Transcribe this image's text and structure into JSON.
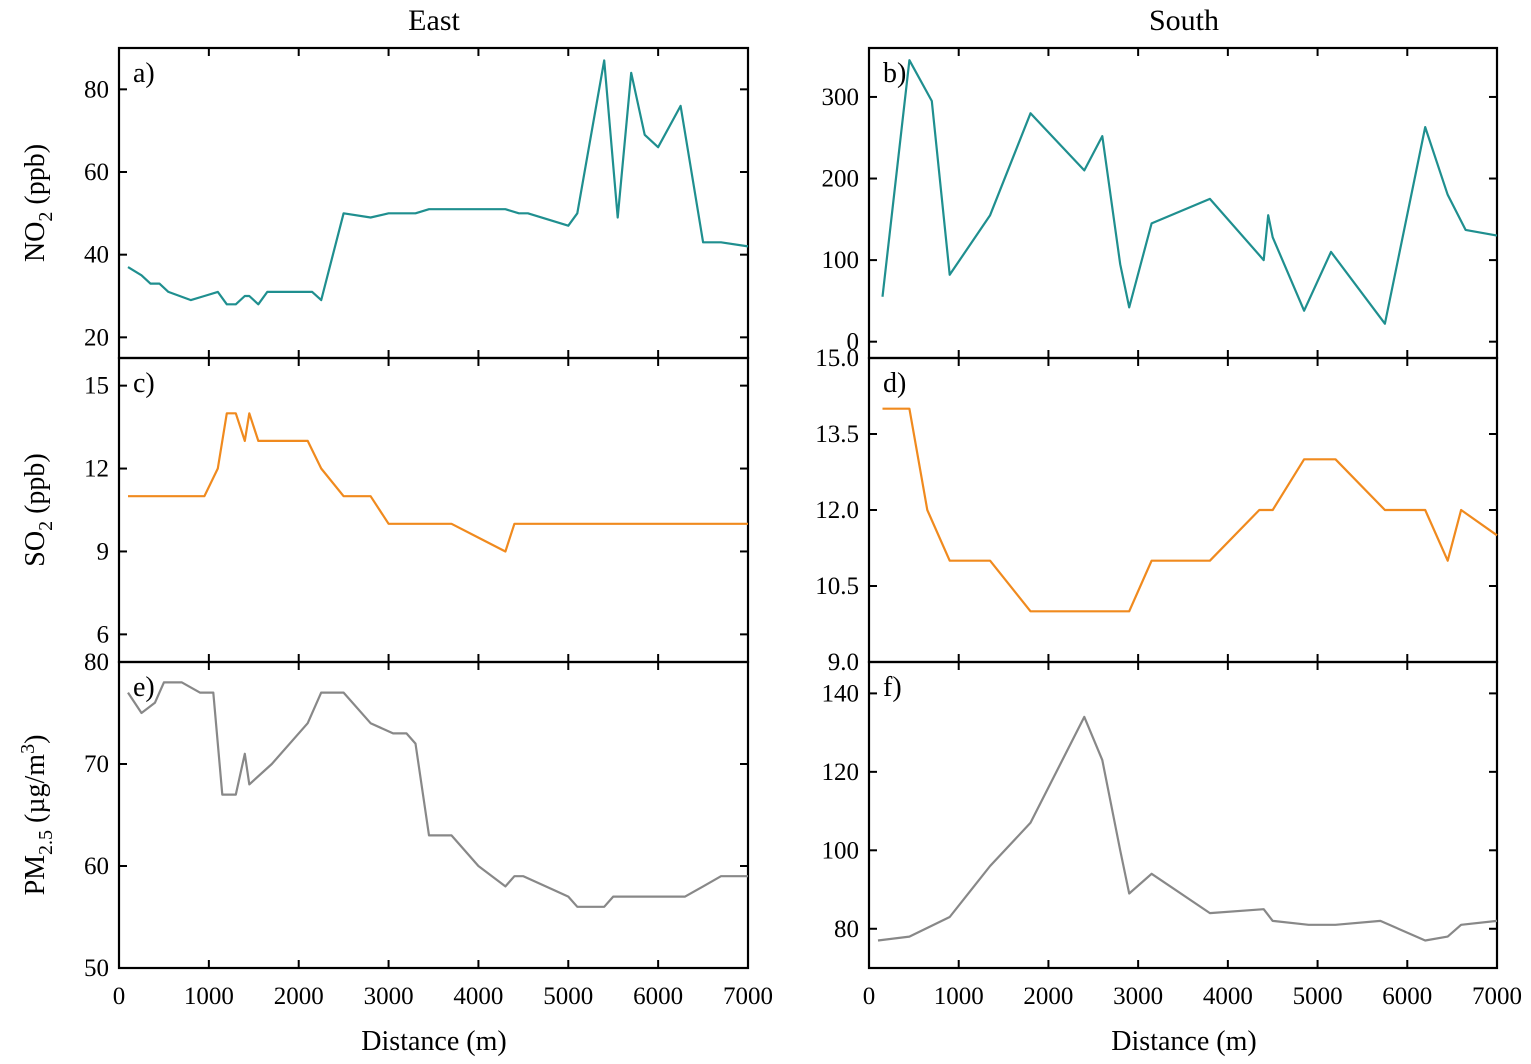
{
  "figure": {
    "col_titles": [
      "East",
      "South"
    ],
    "xlabel": "Distance (m)"
  },
  "chart_data": [
    {
      "type": "line",
      "panel_label": "a)",
      "title": "",
      "xlabel": "",
      "ylabel_parts": {
        "pre": "NO",
        "sub": "2",
        "post": " (ppb)"
      },
      "xlim": [
        0,
        7000
      ],
      "ylim": [
        15,
        90
      ],
      "x_ticks": [
        0,
        1000,
        2000,
        3000,
        4000,
        5000,
        6000,
        7000
      ],
      "y_ticks": [
        20,
        40,
        60,
        80
      ],
      "y_tick_labels": [
        "20",
        "40",
        "60",
        "80"
      ],
      "color": "#1f8f8f",
      "x": [
        100,
        250,
        350,
        450,
        550,
        800,
        950,
        1100,
        1200,
        1300,
        1400,
        1450,
        1550,
        1650,
        1800,
        2000,
        2150,
        2250,
        2500,
        2800,
        3000,
        3300,
        3450,
        3700,
        4000,
        4300,
        4450,
        4550,
        5000,
        5100,
        5400,
        5550,
        5700,
        5850,
        6000,
        6250,
        6500,
        6700,
        7000
      ],
      "y": [
        37,
        35,
        33,
        33,
        31,
        29,
        30,
        31,
        28,
        28,
        30,
        30,
        28,
        31,
        31,
        31,
        31,
        29,
        50,
        49,
        50,
        50,
        51,
        51,
        51,
        51,
        50,
        50,
        47,
        50,
        87,
        49,
        84,
        69,
        66,
        76,
        43,
        43,
        42
      ]
    },
    {
      "type": "line",
      "panel_label": "b)",
      "title": "",
      "xlabel": "",
      "xlim": [
        0,
        7000
      ],
      "ylim": [
        -20,
        360
      ],
      "x_ticks": [
        0,
        1000,
        2000,
        3000,
        4000,
        5000,
        6000,
        7000
      ],
      "y_ticks": [
        0,
        100,
        200,
        300
      ],
      "y_tick_labels": [
        "0",
        "100",
        "200",
        "300"
      ],
      "color": "#1f8f8f",
      "x": [
        150,
        450,
        700,
        900,
        1350,
        1800,
        2400,
        2600,
        2800,
        2900,
        3150,
        3800,
        4400,
        4450,
        4500,
        4850,
        5150,
        5750,
        6200,
        6450,
        6650,
        7000
      ],
      "y": [
        55,
        345,
        295,
        82,
        155,
        280,
        210,
        252,
        95,
        42,
        145,
        175,
        100,
        155,
        128,
        38,
        110,
        22,
        263,
        180,
        137,
        130
      ]
    },
    {
      "type": "line",
      "panel_label": "c)",
      "title": "",
      "xlabel": "",
      "ylabel_parts": {
        "pre": "SO",
        "sub": "2",
        "post": " (ppb)"
      },
      "xlim": [
        0,
        7000
      ],
      "ylim": [
        5,
        16
      ],
      "x_ticks": [
        0,
        1000,
        2000,
        3000,
        4000,
        5000,
        6000,
        7000
      ],
      "y_ticks": [
        6,
        9,
        12,
        15
      ],
      "y_tick_labels": [
        "6",
        "9",
        "12",
        "15"
      ],
      "color": "#f08a1e",
      "x": [
        100,
        300,
        500,
        700,
        950,
        1100,
        1200,
        1300,
        1400,
        1450,
        1550,
        1700,
        2100,
        2250,
        2500,
        2800,
        3000,
        3200,
        3700,
        4000,
        4300,
        4400,
        4500,
        5000,
        7000
      ],
      "y": [
        11,
        11,
        11,
        11,
        11,
        12,
        14,
        14,
        13,
        14,
        13,
        13,
        13,
        12,
        11,
        11,
        10,
        10,
        10,
        9.5,
        9,
        10,
        10,
        10,
        10
      ]
    },
    {
      "type": "line",
      "panel_label": "d)",
      "title": "",
      "xlabel": "",
      "xlim": [
        0,
        7000
      ],
      "ylim": [
        9,
        15
      ],
      "x_ticks": [
        0,
        1000,
        2000,
        3000,
        4000,
        5000,
        6000,
        7000
      ],
      "y_ticks": [
        9,
        10.5,
        12,
        13.5,
        15
      ],
      "y_tick_labels": [
        "9.0",
        "10.5",
        "12.0",
        "13.5",
        "15.0"
      ],
      "color": "#f08a1e",
      "x": [
        150,
        450,
        650,
        900,
        1350,
        1800,
        2400,
        2900,
        3150,
        3800,
        4350,
        4500,
        4850,
        5200,
        5750,
        6200,
        6450,
        6600,
        7000
      ],
      "y": [
        14,
        14,
        12,
        11,
        11,
        10,
        10,
        10,
        11,
        11,
        12,
        12,
        13,
        13,
        12,
        12,
        11,
        12,
        11.5
      ]
    },
    {
      "type": "line",
      "panel_label": "e)",
      "title": "",
      "xlabel": "Distance (m)",
      "ylabel_parts": {
        "pre": "PM",
        "sub": "2.5",
        "post": " (µg/m",
        "sup": "3",
        "post2": ")"
      },
      "xlim": [
        0,
        7000
      ],
      "ylim": [
        50,
        80
      ],
      "x_ticks": [
        0,
        1000,
        2000,
        3000,
        4000,
        5000,
        6000,
        7000
      ],
      "x_tick_labels": [
        "0",
        "1000",
        "2000",
        "3000",
        "4000",
        "5000",
        "6000",
        "7000"
      ],
      "y_ticks": [
        50,
        60,
        70,
        80
      ],
      "y_tick_labels": [
        "50",
        "60",
        "70",
        "80"
      ],
      "color": "#888888",
      "x": [
        100,
        250,
        400,
        500,
        700,
        900,
        1050,
        1150,
        1200,
        1300,
        1400,
        1450,
        1700,
        2100,
        2250,
        2500,
        2800,
        3050,
        3200,
        3300,
        3450,
        3700,
        4000,
        4300,
        4400,
        4500,
        5000,
        5100,
        5400,
        5500,
        6000,
        6300,
        6500,
        6700,
        7000
      ],
      "y": [
        77,
        75,
        76,
        78,
        78,
        77,
        77,
        67,
        67,
        67,
        71,
        68,
        70,
        74,
        77,
        77,
        74,
        73,
        73,
        72,
        63,
        63,
        60,
        58,
        59,
        59,
        57,
        56,
        56,
        57,
        57,
        57,
        58,
        59,
        59
      ]
    },
    {
      "type": "line",
      "panel_label": "f)",
      "title": "",
      "xlabel": "Distance (m)",
      "xlim": [
        0,
        7000
      ],
      "ylim": [
        70,
        148
      ],
      "x_ticks": [
        0,
        1000,
        2000,
        3000,
        4000,
        5000,
        6000,
        7000
      ],
      "x_tick_labels": [
        "0",
        "1000",
        "2000",
        "3000",
        "4000",
        "5000",
        "6000",
        "7000"
      ],
      "y_ticks": [
        80,
        100,
        120,
        140
      ],
      "y_tick_labels": [
        "80",
        "100",
        "120",
        "140"
      ],
      "color": "#888888",
      "x": [
        100,
        450,
        900,
        1350,
        1800,
        2400,
        2600,
        2800,
        2900,
        3150,
        3800,
        4400,
        4500,
        4900,
        5200,
        5700,
        6200,
        6450,
        6600,
        7000
      ],
      "y": [
        77,
        78,
        83,
        96,
        107,
        134,
        123,
        100,
        89,
        94,
        84,
        85,
        82,
        81,
        81,
        82,
        77,
        78,
        81,
        82
      ]
    }
  ]
}
